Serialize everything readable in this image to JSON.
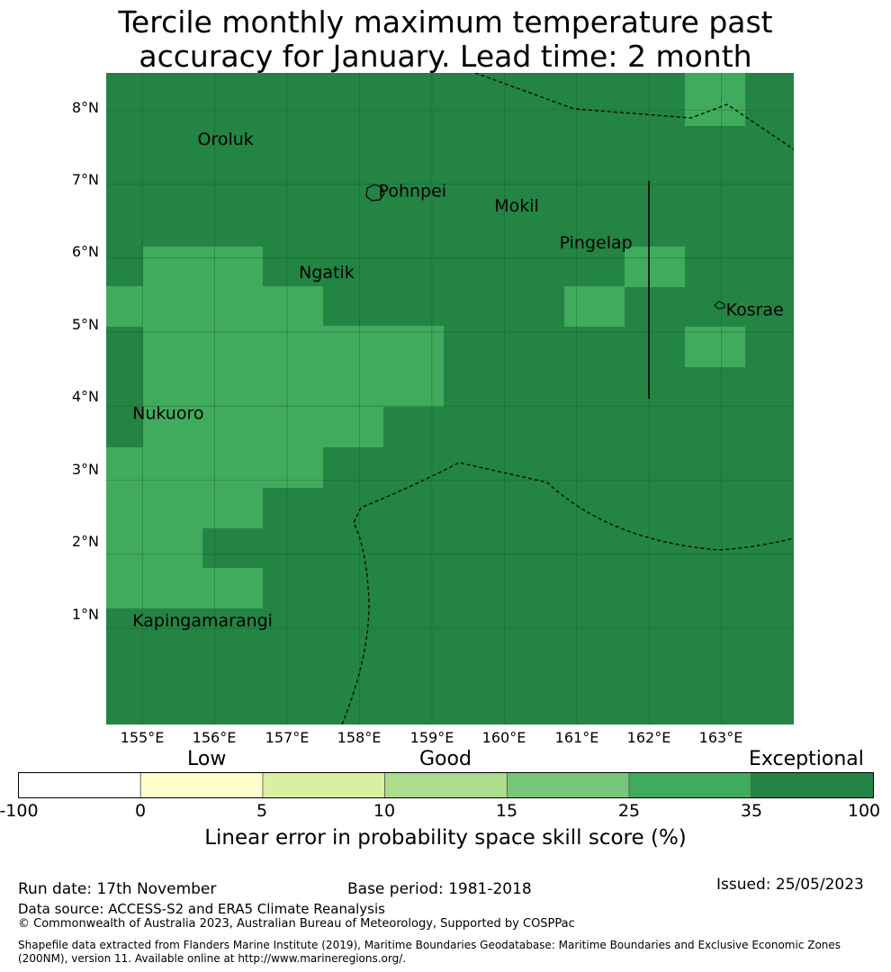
{
  "title_line1": "Tercile monthly maximum temperature past",
  "title_line2": "accuracy for January. Lead time: 2 month",
  "map": {
    "lon_range": [
      154.5,
      164.0
    ],
    "lat_range": [
      -0.3,
      8.5
    ],
    "lat_ticks": [
      "8°N",
      "7°N",
      "6°N",
      "5°N",
      "4°N",
      "3°N",
      "2°N",
      "1°N"
    ],
    "lon_ticks": [
      "155°E",
      "156°E",
      "157°E",
      "158°E",
      "159°E",
      "160°E",
      "161°E",
      "162°E",
      "163°E"
    ],
    "places": [
      {
        "name": "Oroluk",
        "lon": 155.7,
        "lat": 7.6
      },
      {
        "name": "Pohnpei",
        "lon": 158.2,
        "lat": 6.9
      },
      {
        "name": "Mokil",
        "lon": 159.8,
        "lat": 6.7
      },
      {
        "name": "Pingelap",
        "lon": 160.7,
        "lat": 6.2
      },
      {
        "name": "Ngatik",
        "lon": 157.1,
        "lat": 5.8
      },
      {
        "name": "Kosrae",
        "lon": 163.0,
        "lat": 5.3
      },
      {
        "name": "Nukuoro",
        "lon": 154.8,
        "lat": 3.9
      },
      {
        "name": "Kapingamarangi",
        "lon": 154.8,
        "lat": 1.1
      }
    ],
    "colors": {
      "exceptional": "#238443",
      "very_good": "#41ab5d"
    }
  },
  "colorbar": {
    "headings": [
      "Low",
      "Good",
      "Exceptional"
    ],
    "ticks": [
      "-100",
      "0",
      "5",
      "10",
      "15",
      "25",
      "35",
      "100"
    ],
    "colors": [
      "#ffffff",
      "#ffffcc",
      "#d9f0a3",
      "#addd8e",
      "#78c679",
      "#41ab5d",
      "#238443"
    ],
    "label": "Linear error in probability space skill score (%)"
  },
  "footer": {
    "run_date": "Run date: 17th November",
    "base_period": "Base period: 1981-2018",
    "issued": "Issued: 25/05/2023",
    "data_source": "Data source: ACCESS-S2 and ERA5 Climate Reanalysis",
    "copyright": "© Commonwealth of Australia 2023, Australian Bureau of Meteorology, Supported by COSPPac",
    "shapefile": "Shapefile data extracted from Flanders Marine Institute (2019), Maritime Boundaries Geodatabase: Maritime Boundaries and Exclusive Economic Zones (200NM), version 11. Available online at http://www.marineregions.org/."
  }
}
